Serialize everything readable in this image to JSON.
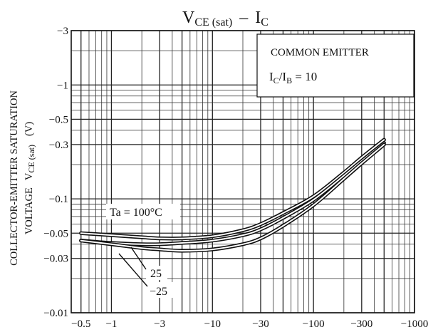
{
  "chart_data": {
    "type": "line",
    "title_main": "V",
    "title_sub1": "CE (sat)",
    "title_dash": "–",
    "title_main2": "I",
    "title_sub2": "C",
    "xlabel": "",
    "ylabel_line1": "COLLECTOR-EMITTER SATURATION",
    "ylabel_line2_a": "VOLTAGE",
    "ylabel_line2_b": "V",
    "ylabel_line2_sub": "CE (sat)",
    "ylabel_line2_unit": "(V)",
    "x_scale": "log",
    "y_scale": "log",
    "xlim": [
      -0.4,
      -1000
    ],
    "ylim": [
      -0.01,
      -3
    ],
    "x_ticks": [
      -0.5,
      -1,
      -3,
      -10,
      -30,
      -100,
      -300,
      -1000
    ],
    "x_tick_labels": [
      "−0.5",
      "−1",
      "−3",
      "−10",
      "−30",
      "−100",
      "−300",
      "−1000"
    ],
    "y_ticks": [
      -0.01,
      -0.03,
      -0.05,
      -0.1,
      -0.3,
      -0.5,
      -1,
      -3
    ],
    "y_tick_labels": [
      "−0.01",
      "−0.03",
      "−0.05",
      "−0.1",
      "−0.3",
      "−0.5",
      "−1",
      "−3"
    ],
    "grid": true,
    "annotation_box": {
      "line1": "COMMON EMITTER",
      "line2_a": "I",
      "line2_sub_a": "C",
      "line2_slash": "/",
      "line2_b": "I",
      "line2_sub_b": "B",
      "line2_eq": " = 10"
    },
    "series": [
      {
        "label": "Ta = 100°C",
        "x": [
          -0.5,
          -1,
          -2,
          -3,
          -5,
          -10,
          -20,
          -30,
          -50,
          -100,
          -200,
          -300,
          -500
        ],
        "y": [
          -0.05,
          -0.048,
          -0.046,
          -0.045,
          -0.045,
          -0.047,
          -0.053,
          -0.06,
          -0.075,
          -0.105,
          -0.17,
          -0.23,
          -0.33
        ]
      },
      {
        "label": "25",
        "x": [
          -0.5,
          -1,
          -2,
          -3,
          -5,
          -10,
          -20,
          -30,
          -50,
          -100,
          -200,
          -300,
          -500
        ],
        "y": [
          -0.043,
          -0.041,
          -0.04,
          -0.04,
          -0.041,
          -0.043,
          -0.048,
          -0.054,
          -0.068,
          -0.098,
          -0.16,
          -0.215,
          -0.31
        ]
      },
      {
        "label": "−25",
        "x": [
          -0.5,
          -1,
          -2,
          -3,
          -5,
          -10,
          -20,
          -30,
          -50,
          -100,
          -200,
          -300,
          -500
        ],
        "y": [
          -0.043,
          -0.04,
          -0.037,
          -0.036,
          -0.035,
          -0.036,
          -0.04,
          -0.045,
          -0.058,
          -0.088,
          -0.15,
          -0.205,
          -0.3
        ]
      }
    ]
  }
}
